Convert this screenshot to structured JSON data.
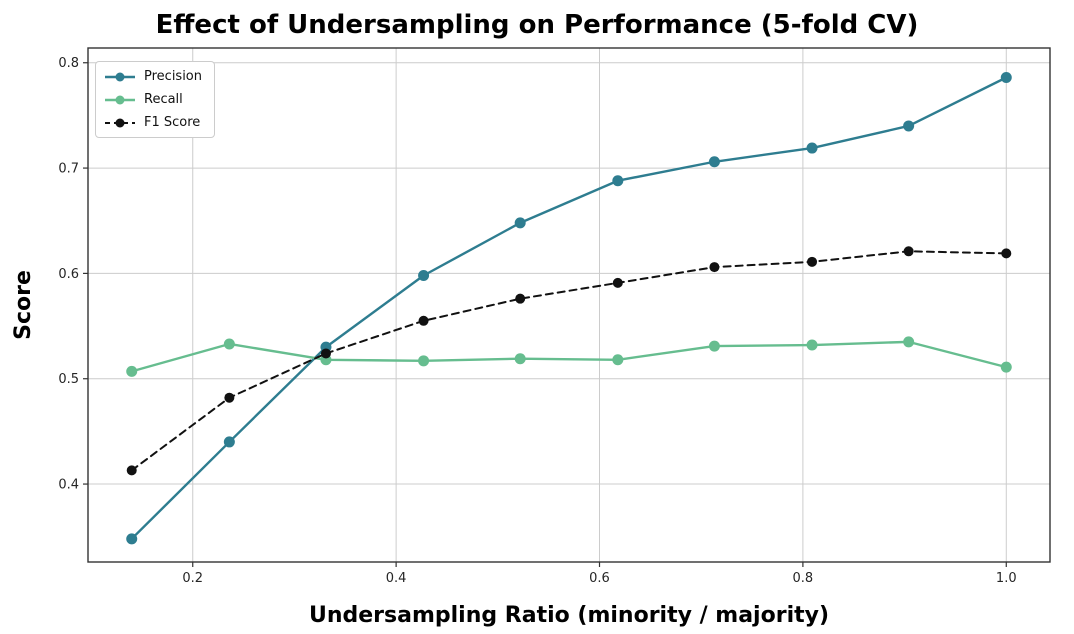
{
  "chart_data": {
    "type": "line",
    "title": "Effect of Undersampling on Performance (5-fold CV)",
    "xlabel": "Undersampling Ratio (minority / majority)",
    "ylabel": "Score",
    "x": [
      0.14,
      0.236,
      0.331,
      0.427,
      0.522,
      0.618,
      0.713,
      0.809,
      0.904,
      1.0
    ],
    "series": [
      {
        "name": "Precision",
        "color": "#2E7D90",
        "line_style": "solid",
        "marker": "circle",
        "values": [
          0.348,
          0.44,
          0.53,
          0.598,
          0.648,
          0.688,
          0.706,
          0.719,
          0.74,
          0.786
        ]
      },
      {
        "name": "Recall",
        "color": "#66BD8F",
        "line_style": "solid",
        "marker": "circle",
        "values": [
          0.507,
          0.533,
          0.518,
          0.517,
          0.519,
          0.518,
          0.531,
          0.532,
          0.535,
          0.511
        ]
      },
      {
        "name": "F1 Score",
        "color": "#111111",
        "line_style": "dashed",
        "marker": "circle",
        "values": [
          0.413,
          0.482,
          0.524,
          0.555,
          0.576,
          0.591,
          0.606,
          0.611,
          0.621,
          0.619
        ]
      }
    ],
    "xticks": {
      "values": [
        0.2,
        0.4,
        0.6,
        0.8,
        1.0
      ],
      "labels": [
        "0.2",
        "0.4",
        "0.6",
        "0.8",
        "1.0"
      ]
    },
    "yticks": {
      "values": [
        0.4,
        0.5,
        0.6,
        0.7,
        0.8
      ],
      "labels": [
        "0.4",
        "0.5",
        "0.6",
        "0.7",
        "0.8"
      ]
    },
    "xlim": [
      0.097,
      1.043
    ],
    "ylim": [
      0.326,
      0.814
    ],
    "grid": true,
    "grid_color": "#cccccc",
    "spine_color": "#333333",
    "legend_position": "upper left",
    "background": "#ffffff"
  }
}
